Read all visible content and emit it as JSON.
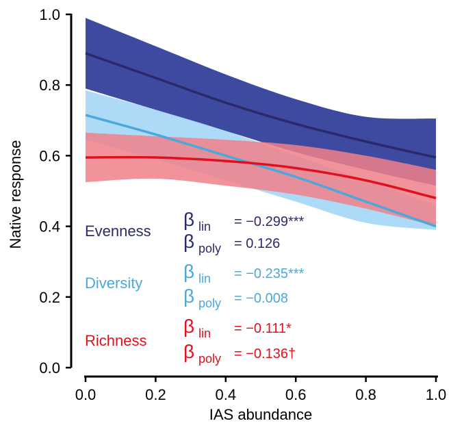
{
  "chart_data": {
    "type": "line",
    "xlabel": "IAS abundance",
    "ylabel": "Native response",
    "xlim": [
      0,
      1
    ],
    "ylim": [
      0,
      1
    ],
    "xticks": [
      0.0,
      0.2,
      0.4,
      0.6,
      0.8,
      1.0
    ],
    "yticks": [
      0.0,
      0.2,
      0.4,
      0.6,
      0.8,
      1.0
    ],
    "xtick_labels": [
      "0.0",
      "0.2",
      "0.4",
      "0.6",
      "0.8",
      "1.0"
    ],
    "ytick_labels": [
      "0.0",
      "0.2",
      "0.4",
      "0.6",
      "0.8",
      "1.0"
    ],
    "grid": false,
    "series": [
      {
        "name": "Evenness",
        "color": "#2a2a6a",
        "band_color": "#3d4aa0",
        "x": [
          0,
          0.2,
          0.4,
          0.6,
          0.8,
          1.0
        ],
        "y": [
          0.89,
          0.82,
          0.75,
          0.69,
          0.64,
          0.595
        ],
        "lower": [
          0.79,
          0.73,
          0.67,
          0.61,
          0.56,
          0.515
        ],
        "upper": [
          0.99,
          0.91,
          0.83,
          0.76,
          0.71,
          0.705
        ],
        "stats": {
          "lin_label": "lin",
          "lin_value": "= −0.299***",
          "poly_label": "poly",
          "poly_value": "=  0.126"
        }
      },
      {
        "name": "Diversity",
        "color": "#4aa8dc",
        "band_color": "#9fd4f4",
        "x": [
          0,
          0.2,
          0.4,
          0.6,
          0.8,
          1.0
        ],
        "y": [
          0.715,
          0.66,
          0.6,
          0.54,
          0.47,
          0.4
        ],
        "lower": [
          0.645,
          0.59,
          0.53,
          0.47,
          0.41,
          0.39
        ],
        "upper": [
          0.785,
          0.73,
          0.67,
          0.6,
          0.53,
          0.46
        ],
        "stats": {
          "lin_label": "lin",
          "lin_value": "= −0.235***",
          "poly_label": "poly",
          "poly_value": "= −0.008"
        }
      },
      {
        "name": "Richness",
        "color": "#e0111e",
        "band_color": "#f0808a",
        "x": [
          0,
          0.2,
          0.4,
          0.6,
          0.8,
          1.0
        ],
        "y": [
          0.595,
          0.595,
          0.585,
          0.565,
          0.53,
          0.48
        ],
        "lower": [
          0.525,
          0.535,
          0.515,
          0.49,
          0.45,
          0.4
        ],
        "upper": [
          0.665,
          0.655,
          0.645,
          0.63,
          0.6,
          0.56
        ],
        "stats": {
          "lin_label": "lin",
          "lin_value": "= −0.111*",
          "poly_label": "poly",
          "poly_value": "= −0.136†"
        }
      }
    ]
  }
}
